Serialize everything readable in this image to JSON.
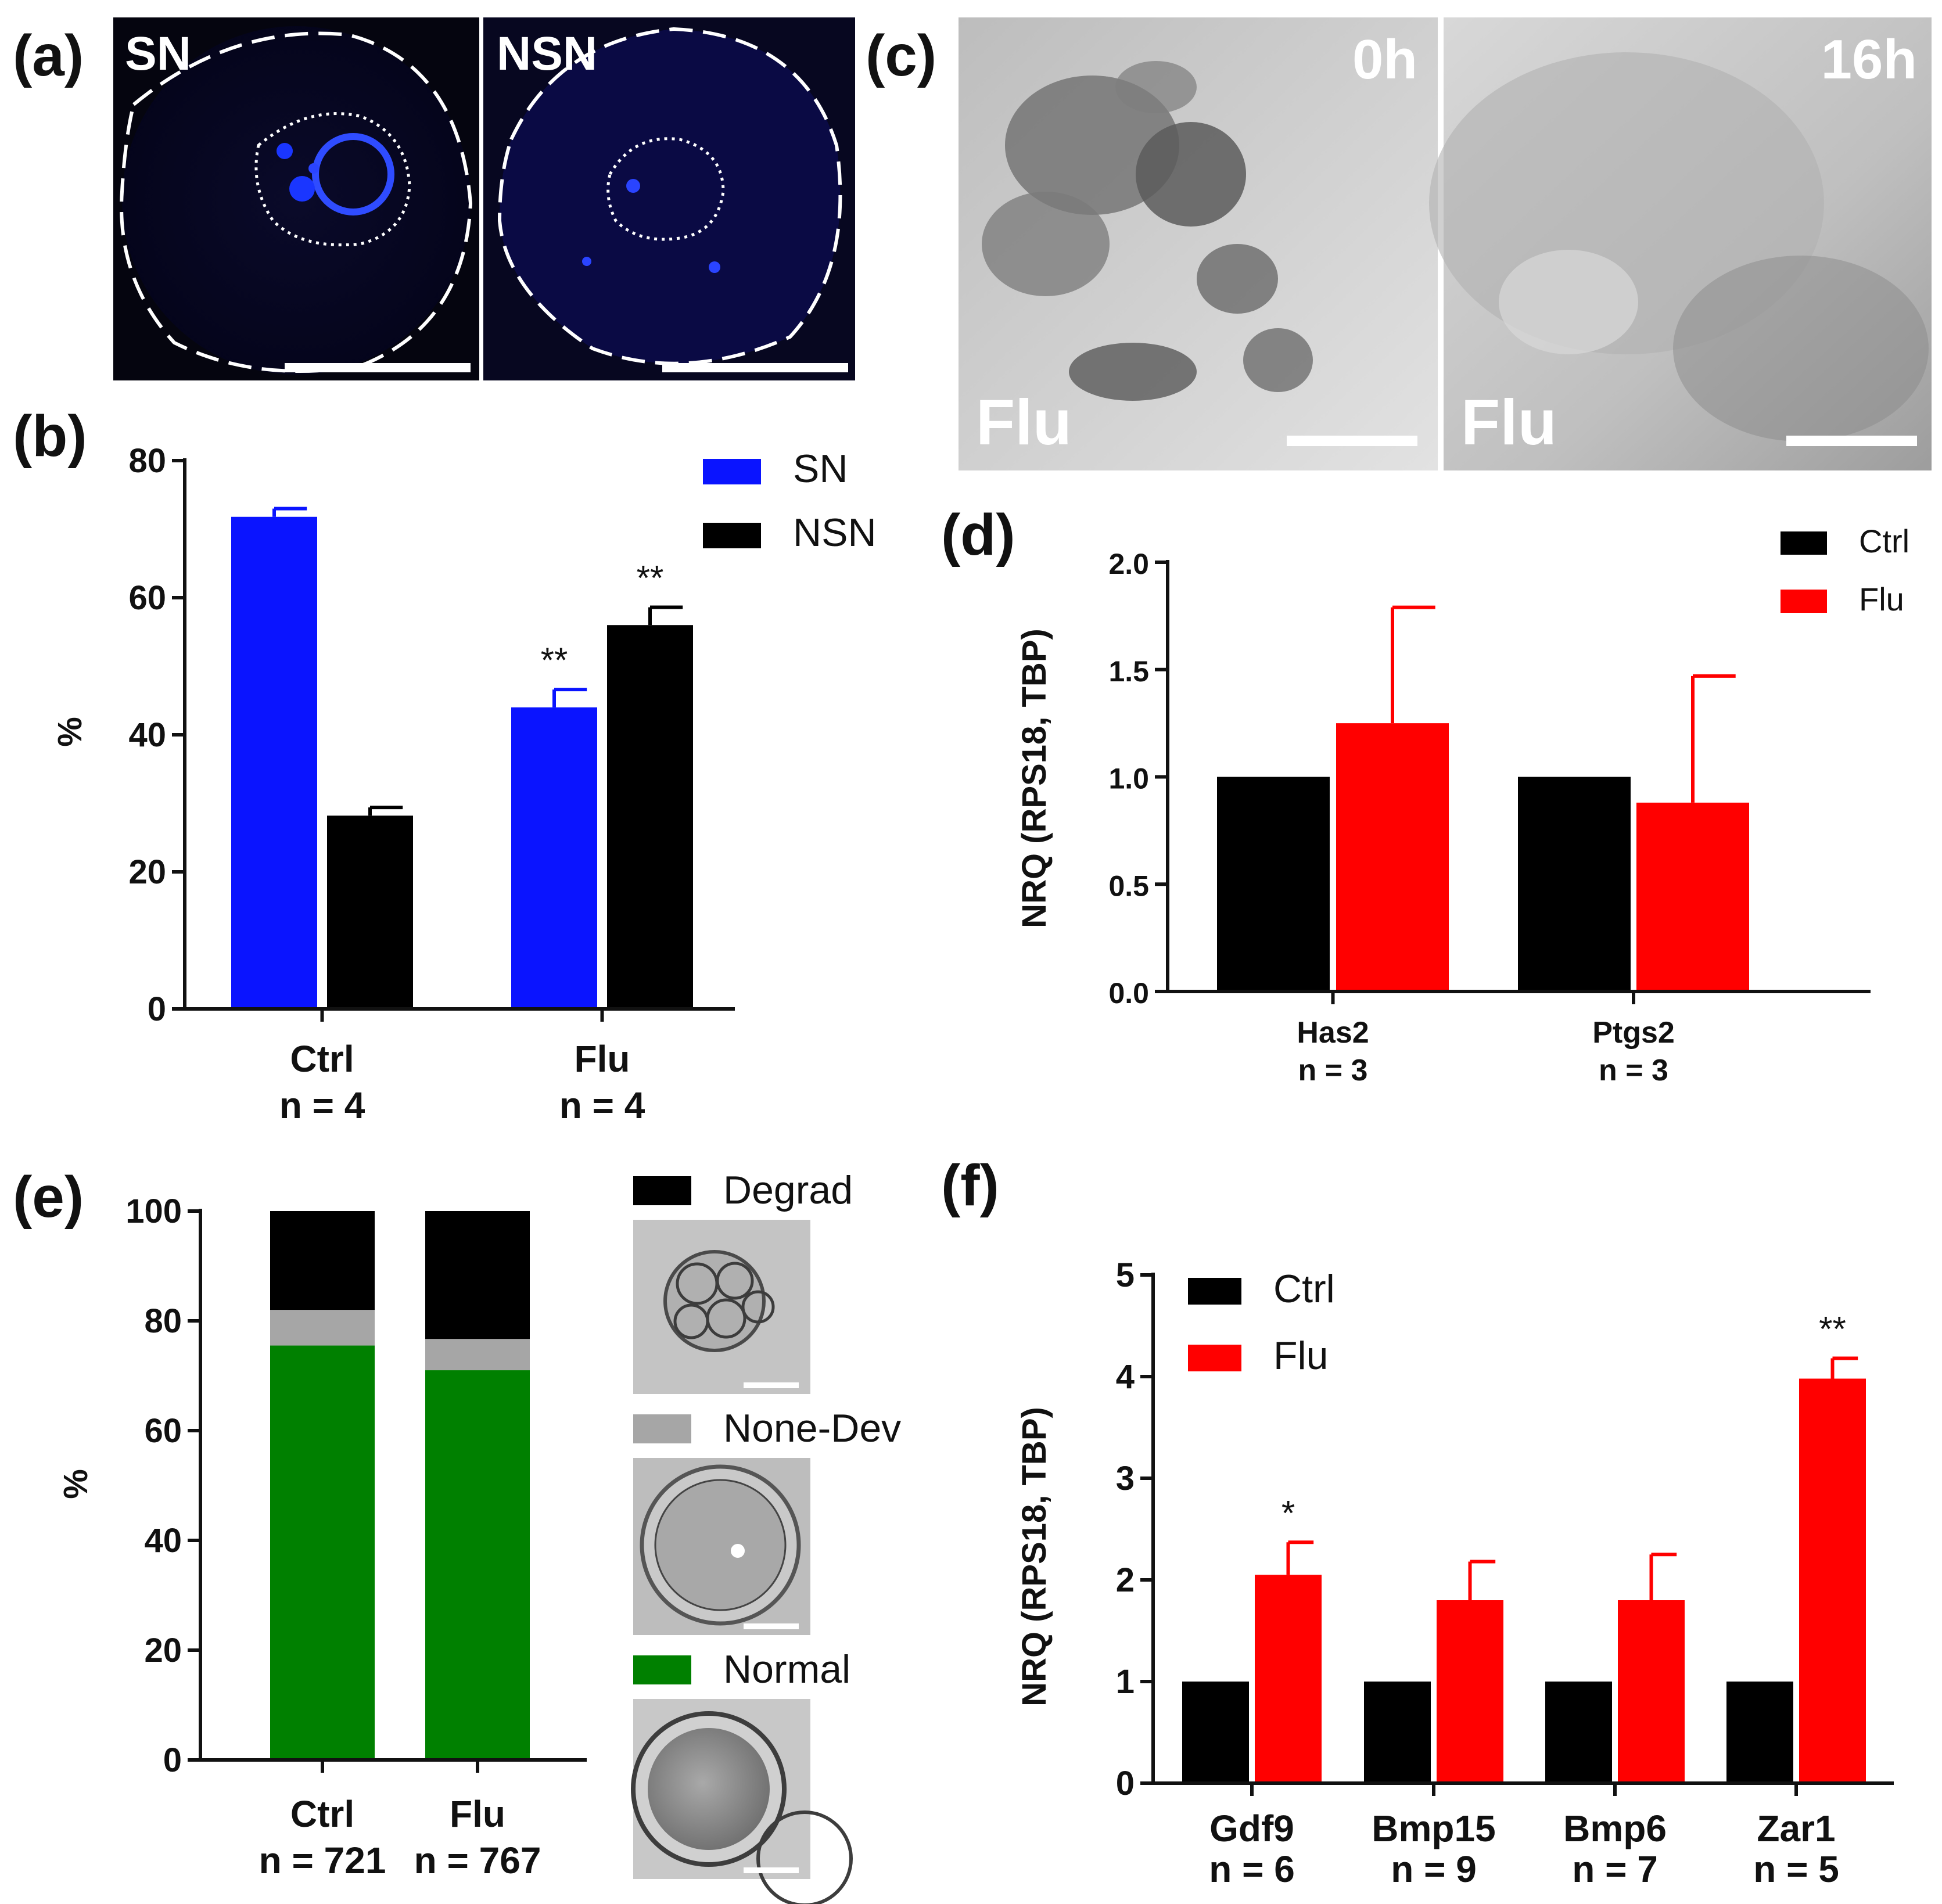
{
  "panels": {
    "a": {
      "letter": "(a)",
      "image_labels": [
        "SN",
        "NSN"
      ],
      "description_colors": {
        "background": "#05050f",
        "dna_stain": "#1a36ff"
      }
    },
    "c": {
      "letter": "(c)",
      "time_labels": [
        "0h",
        "16h"
      ],
      "treatment_labels": [
        "Flu",
        "Flu"
      ]
    },
    "e_images": {
      "categories": [
        "Degrad",
        "None-Dev",
        "Normal"
      ]
    }
  },
  "chart_data": [
    {
      "id": "b",
      "letter": "(b)",
      "type": "bar",
      "categories": [
        "Ctrl",
        "Flu"
      ],
      "category_n": [
        "n = 4",
        "n = 4"
      ],
      "series": [
        {
          "name": "SN",
          "color": "#0a14ff",
          "values": [
            71.8,
            44.0
          ],
          "errors": [
            1.2,
            2.6
          ]
        },
        {
          "name": "NSN",
          "color": "#000000",
          "values": [
            28.2,
            56.0
          ],
          "errors": [
            1.2,
            2.6
          ]
        }
      ],
      "significance": [
        [
          "",
          "**"
        ],
        [
          "",
          "**"
        ]
      ],
      "ylabel": "%",
      "ylim": [
        0,
        80
      ],
      "yticks": [
        "0",
        "20",
        "40",
        "60",
        "80"
      ],
      "legend_position": "top-right"
    },
    {
      "id": "d",
      "letter": "(d)",
      "type": "bar",
      "categories": [
        "Has2",
        "Ptgs2"
      ],
      "category_n": [
        "n = 3",
        "n = 3"
      ],
      "series": [
        {
          "name": "Ctrl",
          "color": "#000000",
          "values": [
            1.0,
            1.0
          ],
          "errors": [
            0,
            0
          ]
        },
        {
          "name": "Flu",
          "color": "#ff0000",
          "values": [
            1.25,
            0.88
          ],
          "errors": [
            0.54,
            0.59
          ]
        }
      ],
      "ylabel": "NRQ (RPS18, TBP)",
      "ylim": [
        0,
        2.0
      ],
      "yticks": [
        "0.0",
        "0.5",
        "1.0",
        "1.5",
        "2.0"
      ],
      "legend_position": "top-right"
    },
    {
      "id": "e",
      "letter": "(e)",
      "type": "bar",
      "stacked": true,
      "categories": [
        "Ctrl",
        "Flu"
      ],
      "category_n": [
        "n = 721",
        "n = 767"
      ],
      "series": [
        {
          "name": "Normal",
          "color": "#008000",
          "values": [
            75.5,
            71.0
          ]
        },
        {
          "name": "None-Dev",
          "color": "#a6a6a6",
          "values": [
            6.5,
            5.7
          ]
        },
        {
          "name": "Degrad",
          "color": "#000000",
          "values": [
            18.0,
            23.3
          ]
        }
      ],
      "ylabel": "%",
      "ylim": [
        0,
        100
      ],
      "yticks": [
        "0",
        "20",
        "40",
        "60",
        "80",
        "100"
      ],
      "legend_position": "right"
    },
    {
      "id": "f",
      "letter": "(f)",
      "type": "bar",
      "categories": [
        "Gdf9",
        "Bmp15",
        "Bmp6",
        "Zar1"
      ],
      "category_n": [
        "n = 6",
        "n = 9",
        "n = 7",
        "n = 5"
      ],
      "series": [
        {
          "name": "Ctrl",
          "color": "#000000",
          "values": [
            1.0,
            1.0,
            1.0,
            1.0
          ],
          "errors": [
            0,
            0,
            0,
            0
          ]
        },
        {
          "name": "Flu",
          "color": "#ff0000",
          "values": [
            2.05,
            1.8,
            1.8,
            3.98
          ],
          "errors": [
            0.32,
            0.38,
            0.45,
            0.2
          ]
        }
      ],
      "significance": [
        "*",
        "",
        "",
        "**"
      ],
      "ylabel": "NRQ (RPS18, TBP)",
      "ylim": [
        0,
        5
      ],
      "yticks": [
        "0",
        "1",
        "2",
        "3",
        "4",
        "5"
      ],
      "legend_position": "top-left"
    }
  ]
}
